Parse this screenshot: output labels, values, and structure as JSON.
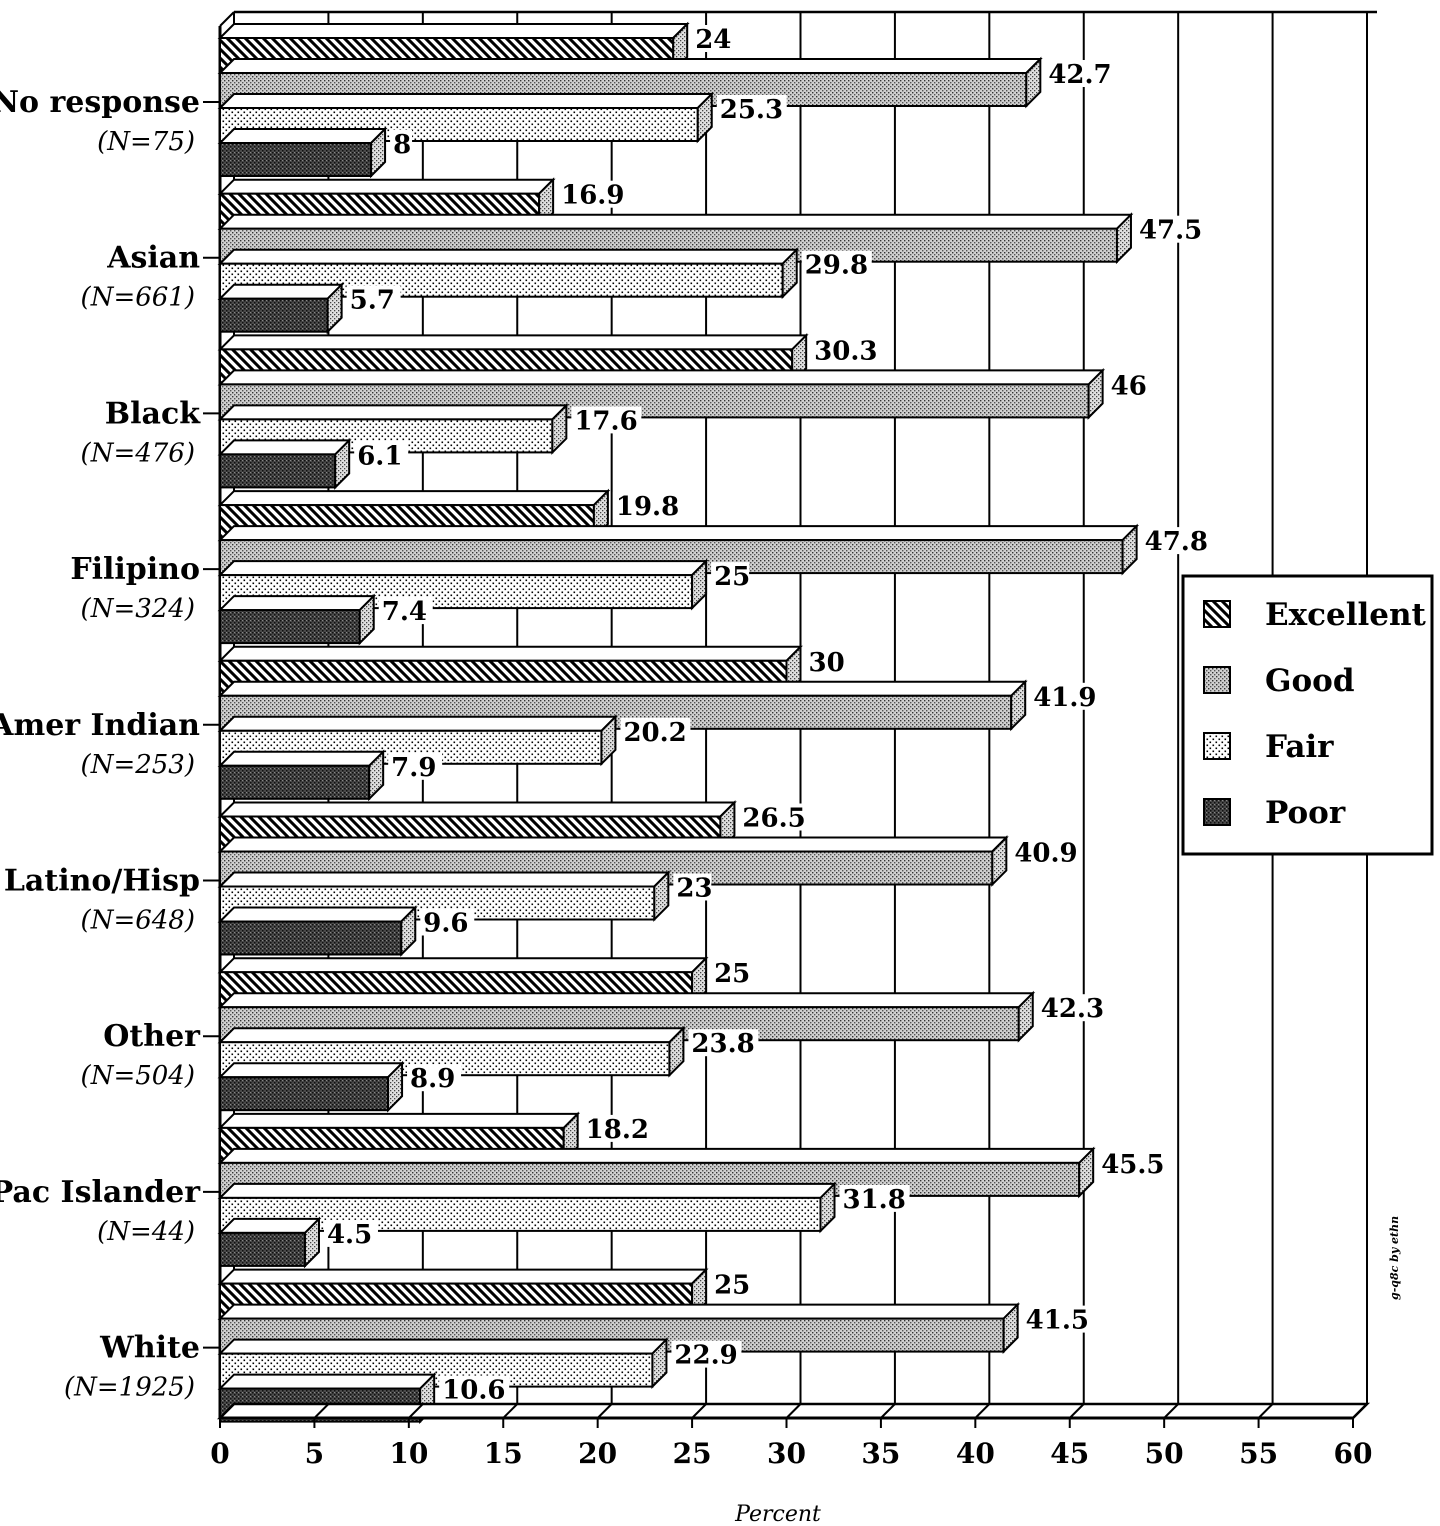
{
  "chart_data": {
    "type": "bar",
    "orientation": "horizontal",
    "style": "3d",
    "categories": [
      {
        "name": "No response",
        "n": "(N=75)"
      },
      {
        "name": "Asian",
        "n": "(N=661)"
      },
      {
        "name": "Black",
        "n": "(N=476)"
      },
      {
        "name": "Filipino",
        "n": "(N=324)"
      },
      {
        "name": "Amer Indian",
        "n": "(N=253)"
      },
      {
        "name": "Latino/Hisp",
        "n": "(N=648)"
      },
      {
        "name": "Other",
        "n": "(N=504)"
      },
      {
        "name": "Pac Islander",
        "n": "(N=44)"
      },
      {
        "name": "White",
        "n": "(N=1925)"
      }
    ],
    "series": [
      {
        "name": "Excellent",
        "pattern": "diagonal-hatch",
        "values": [
          24,
          16.9,
          30.3,
          19.8,
          30,
          26.5,
          25,
          18.2,
          25
        ]
      },
      {
        "name": "Good",
        "pattern": "fine-stipple",
        "values": [
          42.7,
          47.5,
          46,
          47.8,
          41.9,
          40.9,
          42.3,
          45.5,
          41.5
        ]
      },
      {
        "name": "Fair",
        "pattern": "sparse-dots",
        "values": [
          25.3,
          29.8,
          17.6,
          25,
          20.2,
          23,
          23.8,
          31.8,
          22.9
        ]
      },
      {
        "name": "Poor",
        "pattern": "dense-dark",
        "values": [
          8,
          5.7,
          6.1,
          7.4,
          7.9,
          9.6,
          8.9,
          4.5,
          10.6
        ]
      }
    ],
    "value_labels": [
      [
        "24",
        "42.7",
        "25.3",
        "8"
      ],
      [
        "16.9",
        "47.5",
        "29.8",
        "5.7"
      ],
      [
        "30.3",
        "46",
        "17.6",
        "6.1"
      ],
      [
        "19.8",
        "47.8",
        "25",
        "7.4"
      ],
      [
        "30",
        "41.9",
        "20.2",
        "7.9"
      ],
      [
        "26.5",
        "40.9",
        "23",
        "9.6"
      ],
      [
        "25",
        "42.3",
        "23.8",
        "8.9"
      ],
      [
        "18.2",
        "45.5",
        "31.8",
        "4.5"
      ],
      [
        "25",
        "41.5",
        "22.9",
        "10.6"
      ]
    ],
    "xlim": [
      0,
      60
    ],
    "xticks": [
      "0",
      "5",
      "10",
      "15",
      "20",
      "25",
      "30",
      "35",
      "40",
      "45",
      "50",
      "55",
      "60"
    ],
    "xlabel": "Percent",
    "grid": true,
    "legend": {
      "position": "right",
      "entries": [
        "Excellent",
        "Good",
        "Fair",
        "Poor"
      ]
    },
    "credit": "g-q8c by ethn"
  }
}
